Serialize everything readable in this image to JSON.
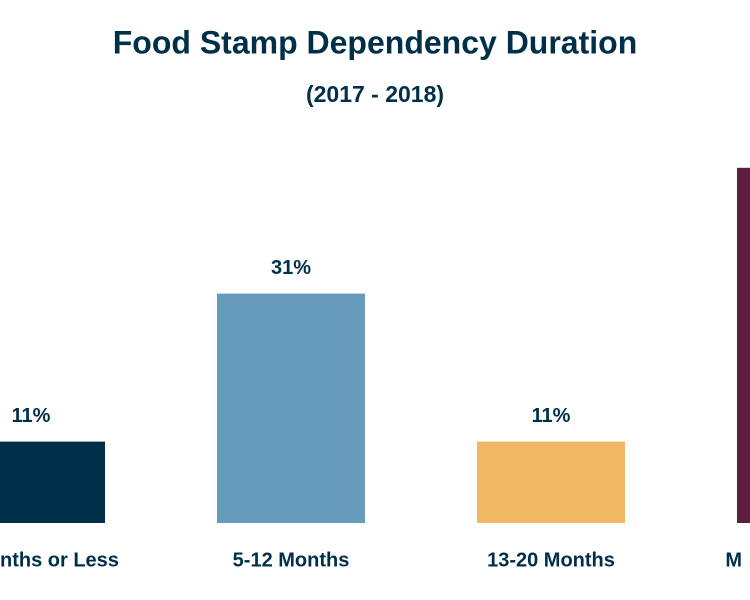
{
  "chart_data": {
    "type": "bar",
    "title": "Food Stamp Dependency Duration",
    "subtitle": "(2017 - 2018)",
    "categories": [
      "nths or Less",
      "5-12 Months",
      "13-20 Months",
      "M"
    ],
    "values": [
      11,
      31,
      11,
      48
    ],
    "value_labels": [
      "11%",
      "31%",
      "11%",
      null
    ],
    "colors": [
      "#003049",
      "#669bbc",
      "#f0b862",
      "#5c1f3f"
    ],
    "ylim": [
      0,
      50
    ]
  }
}
